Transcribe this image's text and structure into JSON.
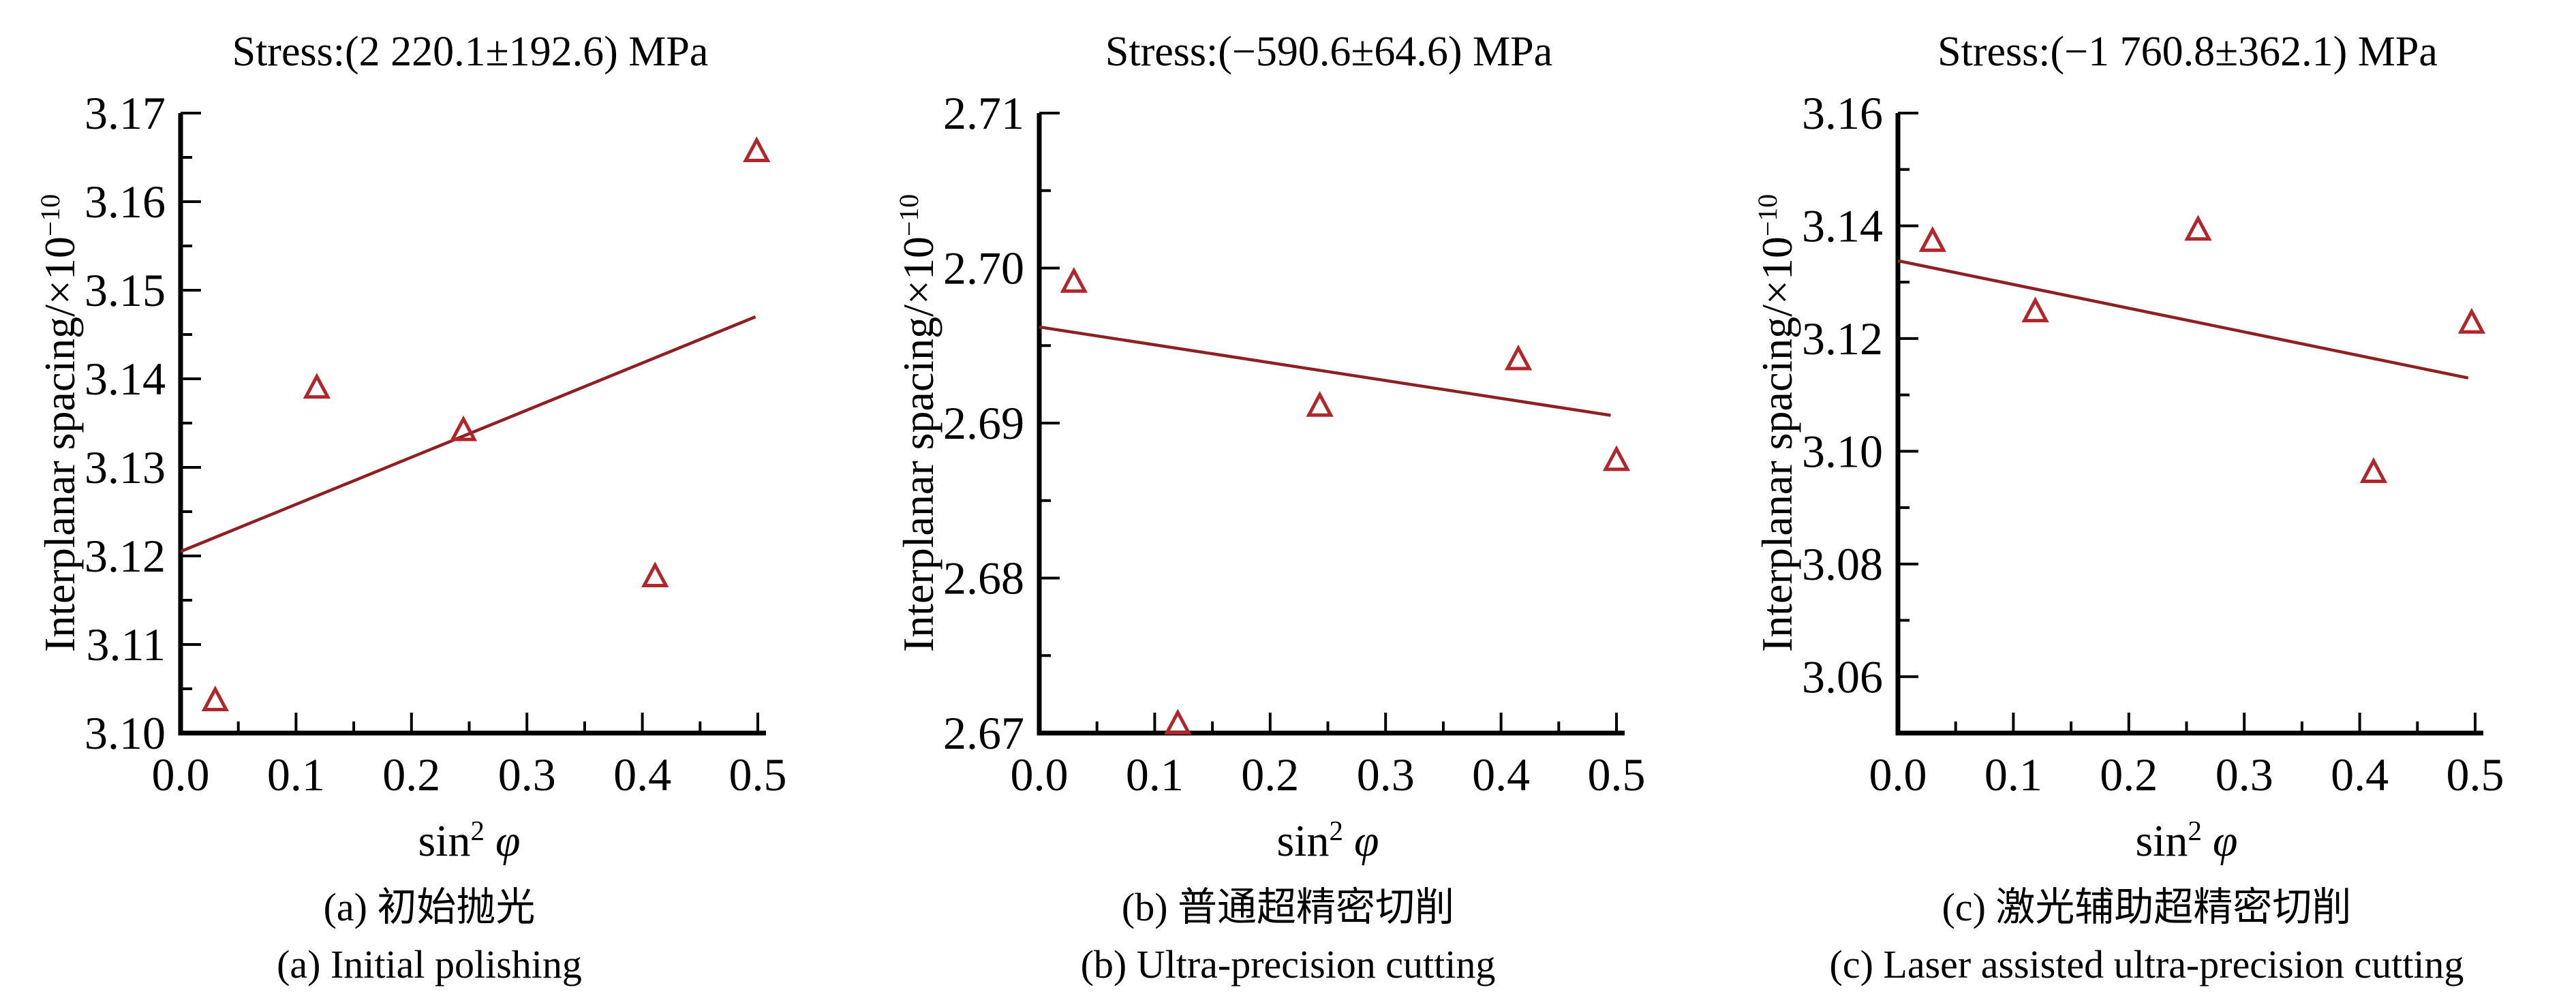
{
  "figure": {
    "ylabel": {
      "base": "Interplanar spacing/×10",
      "sup": "−10"
    },
    "xlabel": {
      "base": "sin",
      "sup": "2",
      "symbol": "φ"
    }
  },
  "colors": {
    "marker": "#b2252b",
    "fit_line": "#8e2023",
    "axis": "#000000",
    "background": "#ffffff"
  },
  "chart_data": [
    {
      "type": "scatter",
      "title": "Stress:(2 220.1±192.6) MPa",
      "stress_mpa": {
        "value": 2220.1,
        "error": 192.6
      },
      "xlabel": "sin2 φ",
      "ylabel": "Interplanar spacing/×10−10",
      "xlim": [
        0,
        0.5
      ],
      "ylim": [
        3.1,
        3.17
      ],
      "x_major_ticks": [
        0,
        0.1,
        0.2,
        0.3,
        0.4,
        0.5
      ],
      "x_tick_labels": [
        "0.0",
        "0.1",
        "0.2",
        "0.3",
        "0.4",
        "0.5"
      ],
      "x_minor_ticks": [
        0.05,
        0.15,
        0.25,
        0.35,
        0.45
      ],
      "y_major_ticks": [
        3.1,
        3.11,
        3.12,
        3.13,
        3.14,
        3.15,
        3.16,
        3.17
      ],
      "y_tick_labels": [
        "3.10",
        "3.11",
        "3.12",
        "3.13",
        "3.14",
        "3.15",
        "3.16",
        "3.17"
      ],
      "y_minor_ticks": [
        3.105,
        3.115,
        3.125,
        3.135,
        3.145,
        3.155,
        3.165
      ],
      "points": {
        "x": [
          0.03,
          0.118,
          0.245,
          0.411,
          0.499
        ],
        "y": [
          3.1035,
          3.1388,
          3.134,
          3.1175,
          3.1655
        ]
      },
      "fit_line": {
        "x": [
          0,
          0.498
        ],
        "y": [
          3.1205,
          3.147
        ]
      },
      "caption_zh": "(a) 初始抛光",
      "caption_en": "(a) Initial polishing"
    },
    {
      "type": "scatter",
      "title": "Stress:(−590.6±64.6) MPa",
      "stress_mpa": {
        "value": -590.6,
        "error": 64.6
      },
      "xlabel": "sin2 φ",
      "ylabel": "Interplanar spacing/×10−10",
      "xlim": [
        0,
        0.5
      ],
      "ylim": [
        2.67,
        2.71
      ],
      "x_major_ticks": [
        0,
        0.1,
        0.2,
        0.3,
        0.4,
        0.5
      ],
      "x_tick_labels": [
        "0.0",
        "0.1",
        "0.2",
        "0.3",
        "0.4",
        "0.5"
      ],
      "x_minor_ticks": [
        0.05,
        0.15,
        0.25,
        0.35,
        0.45
      ],
      "y_major_ticks": [
        2.67,
        2.68,
        2.69,
        2.7,
        2.71
      ],
      "y_tick_labels": [
        "2.67",
        "2.68",
        "2.69",
        "2.70",
        "2.71"
      ],
      "y_minor_ticks": [
        2.675,
        2.685,
        2.695,
        2.705
      ],
      "points": {
        "x": [
          0.03,
          0.12,
          0.243,
          0.415,
          0.5
        ],
        "y": [
          2.699,
          2.6705,
          2.691,
          2.694,
          2.6875
        ]
      },
      "fit_line": {
        "x": [
          0,
          0.495
        ],
        "y": [
          2.6962,
          2.6905
        ]
      },
      "caption_zh": "(b) 普通超精密切削",
      "caption_en": "(b) Ultra-precision cutting"
    },
    {
      "type": "scatter",
      "title": "Stress:(−1 760.8±362.1) MPa",
      "stress_mpa": {
        "value": -1760.8,
        "error": 362.1
      },
      "xlabel": "sin2 φ",
      "ylabel": "Interplanar spacing/×10−10",
      "xlim": [
        0,
        0.5
      ],
      "ylim": [
        3.05,
        3.16
      ],
      "x_major_ticks": [
        0,
        0.1,
        0.2,
        0.3,
        0.4,
        0.5
      ],
      "x_tick_labels": [
        "0.0",
        "0.1",
        "0.2",
        "0.3",
        "0.4",
        "0.5"
      ],
      "x_minor_ticks": [
        0.05,
        0.15,
        0.25,
        0.35,
        0.45
      ],
      "y_major_ticks": [
        3.06,
        3.08,
        3.1,
        3.12,
        3.14,
        3.16
      ],
      "y_tick_labels": [
        "3.06",
        "3.08",
        "3.10",
        "3.12",
        "3.14",
        "3.16"
      ],
      "y_minor_ticks": [
        3.05,
        3.07,
        3.09,
        3.11,
        3.13,
        3.15
      ],
      "points": {
        "x": [
          0.03,
          0.119,
          0.26,
          0.412,
          0.497
        ],
        "y": [
          3.137,
          3.1245,
          3.139,
          3.096,
          3.1225
        ]
      },
      "fit_line": {
        "x": [
          0,
          0.494
        ],
        "y": [
          3.1338,
          3.113
        ]
      },
      "caption_zh": "(c) 激光辅助超精密切削",
      "caption_en": "(c) Laser assisted ultra-precision cutting"
    }
  ]
}
